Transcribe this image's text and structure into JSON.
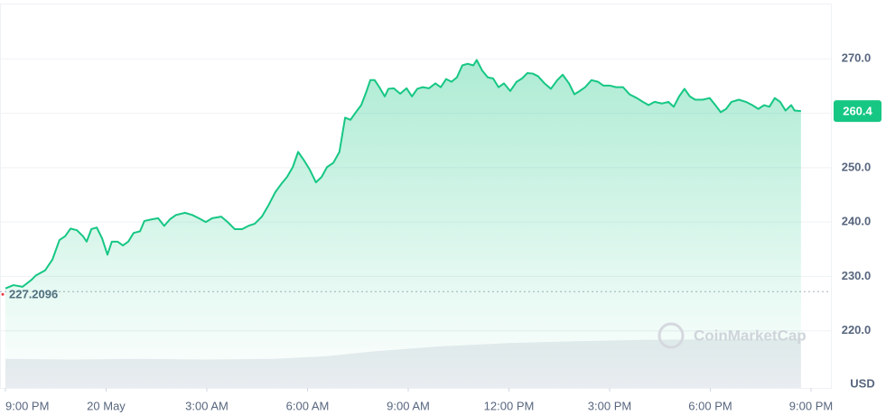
{
  "chart_data": {
    "type": "line",
    "x": [
      0,
      0.24,
      0.51,
      0.78,
      0.91,
      1.18,
      1.4,
      1.61,
      1.78,
      1.94,
      2.13,
      2.31,
      2.42,
      2.56,
      2.72,
      2.88,
      3.04,
      3.17,
      3.34,
      3.5,
      3.66,
      3.82,
      4.01,
      4.14,
      4.36,
      4.55,
      4.73,
      4.9,
      5.08,
      5.35,
      5.57,
      5.76,
      5.97,
      6.16,
      6.43,
      6.62,
      6.83,
      7.05,
      7.24,
      7.43,
      7.64,
      7.83,
      8.04,
      8.23,
      8.39,
      8.56,
      8.72,
      8.91,
      9.07,
      9.25,
      9.42,
      9.58,
      9.77,
      9.95,
      10.12,
      10.28,
      10.44,
      10.6,
      10.76,
      10.87,
      11.0,
      11.14,
      11.3,
      11.41,
      11.57,
      11.76,
      11.95,
      12.11,
      12.27,
      12.43,
      12.62,
      12.81,
      12.97,
      13.13,
      13.29,
      13.45,
      13.61,
      13.77,
      13.94,
      14.04,
      14.2,
      14.37,
      14.53,
      14.69,
      14.85,
      15.04,
      15.23,
      15.39,
      15.55,
      15.71,
      15.87,
      16.06,
      16.25,
      16.44,
      16.6,
      16.79,
      16.95,
      17.11,
      17.27,
      17.46,
      17.65,
      17.81,
      18.0,
      18.19,
      18.4,
      18.59,
      18.81,
      18.99,
      19.16,
      19.34,
      19.56,
      19.75,
      19.91,
      20.07,
      20.23,
      20.39,
      20.55,
      20.77,
      20.98,
      21.15,
      21.31,
      21.47,
      21.63,
      21.85,
      22.06,
      22.25,
      22.43,
      22.6,
      22.76,
      22.92,
      23.08,
      23.24,
      23.41,
      23.51,
      23.7
    ],
    "series": [
      {
        "color": "#16c784",
        "values": [
          227.8,
          228.4,
          228.1,
          229.4,
          230.2,
          231.1,
          233.1,
          236.7,
          237.4,
          238.8,
          238.5,
          237.4,
          236.4,
          238.7,
          239.0,
          237.0,
          234.0,
          236.4,
          236.4,
          235.7,
          236.4,
          238.0,
          238.3,
          240.2,
          240.5,
          240.7,
          239.3,
          240.5,
          241.3,
          241.7,
          241.3,
          240.7,
          240.0,
          240.7,
          241.0,
          240.0,
          238.7,
          238.7,
          239.3,
          239.7,
          241.0,
          243.0,
          245.5,
          247.1,
          248.3,
          250.1,
          252.9,
          251.2,
          249.6,
          247.3,
          248.3,
          250.1,
          250.9,
          252.9,
          259.2,
          258.8,
          260.2,
          261.5,
          264.1,
          266.1,
          266.1,
          264.8,
          263.1,
          264.5,
          264.6,
          263.6,
          264.6,
          263.1,
          264.5,
          264.8,
          264.6,
          265.5,
          264.8,
          266.3,
          265.8,
          266.6,
          268.8,
          269.1,
          268.8,
          269.8,
          267.9,
          266.6,
          266.4,
          264.8,
          265.5,
          264.1,
          265.8,
          266.4,
          267.4,
          267.3,
          266.8,
          265.5,
          264.5,
          266.1,
          267.1,
          265.5,
          263.5,
          264.1,
          264.8,
          266.1,
          265.8,
          265.1,
          265.1,
          264.8,
          264.8,
          263.5,
          262.8,
          262.1,
          261.5,
          262.1,
          261.8,
          262.1,
          261.2,
          263.1,
          264.5,
          263.1,
          262.5,
          262.5,
          262.8,
          261.5,
          260.2,
          260.8,
          262.1,
          262.5,
          262.1,
          261.5,
          260.8,
          261.5,
          261.2,
          262.8,
          262.1,
          260.5,
          261.5,
          260.5,
          260.4
        ]
      }
    ],
    "xlim": [
      0,
      24
    ],
    "xticks": [
      {
        "value": 0,
        "label": "9:00 PM"
      },
      {
        "value": 3,
        "label": "20 May"
      },
      {
        "value": 6,
        "label": "3:00 AM"
      },
      {
        "value": 9,
        "label": "6:00 AM"
      },
      {
        "value": 12,
        "label": "9:00 AM"
      },
      {
        "value": 15,
        "label": "12:00 PM"
      },
      {
        "value": 18,
        "label": "3:00 PM"
      },
      {
        "value": 21,
        "label": "6:00 PM"
      },
      {
        "value": 24,
        "label": "9:00 PM"
      }
    ],
    "ylim": [
      209.5,
      280
    ],
    "yticks": [
      {
        "value": 220,
        "label": "220.0"
      },
      {
        "value": 230,
        "label": "230.0"
      },
      {
        "value": 240,
        "label": "240.0"
      },
      {
        "value": 250,
        "label": "250.0"
      },
      {
        "value": 260,
        "label": "260.0"
      },
      {
        "value": 270,
        "label": "270.0"
      }
    ],
    "grid": true,
    "last_price": 260.4,
    "reference": 227.2096,
    "currency": "USD",
    "watermark": "CoinMarketCap",
    "volume": {
      "x": [
        0,
        2,
        4,
        6,
        8,
        9.5,
        11,
        13,
        15,
        17,
        19,
        21,
        23.7
      ],
      "values": [
        46,
        45,
        46,
        45,
        46,
        50,
        58,
        66,
        71,
        74,
        76,
        77,
        78
      ],
      "ylim": [
        0,
        100
      ],
      "color": "#e9ecf0"
    }
  }
}
